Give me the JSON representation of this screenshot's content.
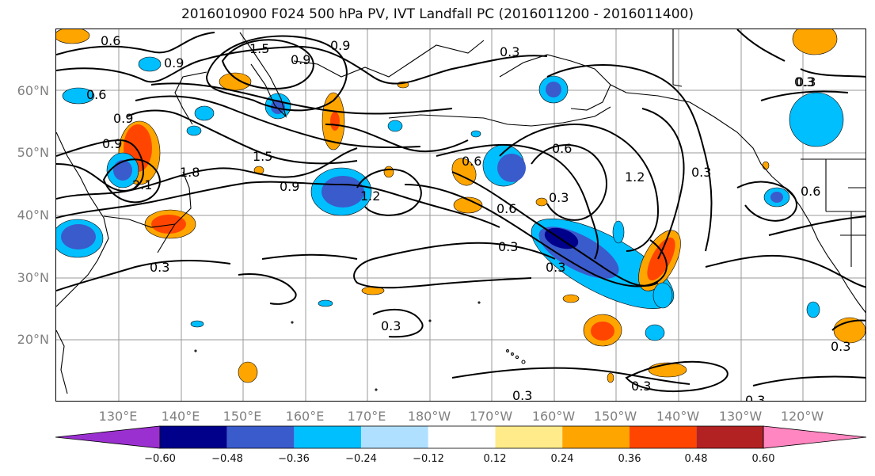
{
  "title": "2016010900 F024 500 hPa PV, IVT Landfall PC (2016011200 - 2016011400)",
  "map": {
    "lat_labels": [
      "60°N",
      "50°N",
      "40°N",
      "30°N",
      "20°N"
    ],
    "lon_labels": [
      "130°E",
      "140°E",
      "150°E",
      "160°E",
      "170°E",
      "180°W",
      "170°W",
      "160°W",
      "150°W",
      "140°W",
      "130°W",
      "120°W"
    ],
    "contour_labels": [
      "0.6",
      "1.5",
      "0.9",
      "0.3",
      "0.3",
      "0.9",
      "0.9",
      "0.6",
      "0.9",
      "0.9",
      "1.8",
      "1.5",
      "2.1",
      "0.9",
      "1.2",
      "0.6",
      "0.3",
      "0.6",
      "0.3",
      "1.2",
      "0.3",
      "0.6",
      "0.3",
      "0.3",
      "0.3",
      "0.3",
      "0.3",
      "0.3",
      "0.3",
      "0.3",
      "0.6"
    ]
  },
  "colorbar": {
    "colors": [
      "#9b30d0",
      "#00008b",
      "#3a5bcc",
      "#00bfff",
      "#b0e0ff",
      "#ffffff",
      "#ffeb8a",
      "#ffa500",
      "#ff4500",
      "#b22222",
      "#ff86c0"
    ],
    "ticks": [
      "−0.60",
      "−0.48",
      "−0.36",
      "−0.24",
      "−0.12",
      "0.12",
      "0.24",
      "0.36",
      "0.48",
      "0.60"
    ]
  }
}
